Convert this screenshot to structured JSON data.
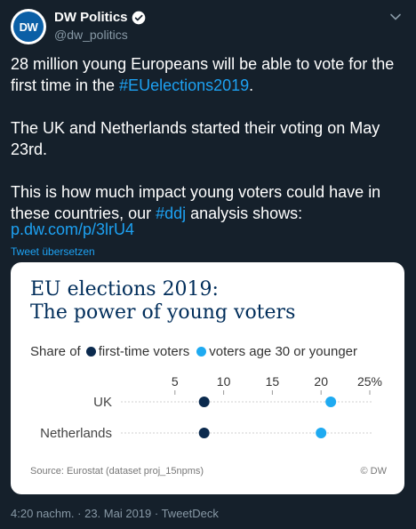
{
  "author": {
    "display_name": "DW Politics",
    "handle": "@dw_politics",
    "avatar_text": "DW",
    "verified": true
  },
  "tweet": {
    "p1_text": "28 million young Europeans will be able to vote for the first time in the ",
    "p1_hashtag": "#EUelections2019",
    "p1_end": ".",
    "p2_text": "The UK and Netherlands started their voting on May 23rd.",
    "p3_text": "This is how much impact young voters could have in these countries, our ",
    "p3_hashtag": "#ddj",
    "p3_end": " analysis shows:",
    "url": "p.dw.com/p/3lrU4",
    "translate_label": "Tweet übersetzen"
  },
  "card": {
    "title_line1": "EU elections 2019:",
    "title_line2": "The power of young voters",
    "legend_prefix": "Share of",
    "source": "Source: Eurostat (dataset proj_15npms)",
    "copyright": "© DW"
  },
  "colors": {
    "background": "#15202b",
    "link": "#1da1f2",
    "first_time": "#0b2a4e",
    "young": "#1eaaf1"
  },
  "footer": {
    "timestamp": "4:20 nachm. · 23. Mai 2019 · TweetDeck"
  },
  "chart_data": {
    "type": "scatter",
    "categories": [
      "UK",
      "Netherlands"
    ],
    "series": [
      {
        "name": "first-time voters",
        "values": [
          8,
          8
        ]
      },
      {
        "name": "voters age 30 or younger",
        "values": [
          21,
          20
        ]
      }
    ],
    "x_ticks": [
      "5",
      "10",
      "15",
      "20",
      "25%"
    ],
    "xlim": [
      0,
      25
    ],
    "grid": false,
    "legend_position": "top"
  }
}
